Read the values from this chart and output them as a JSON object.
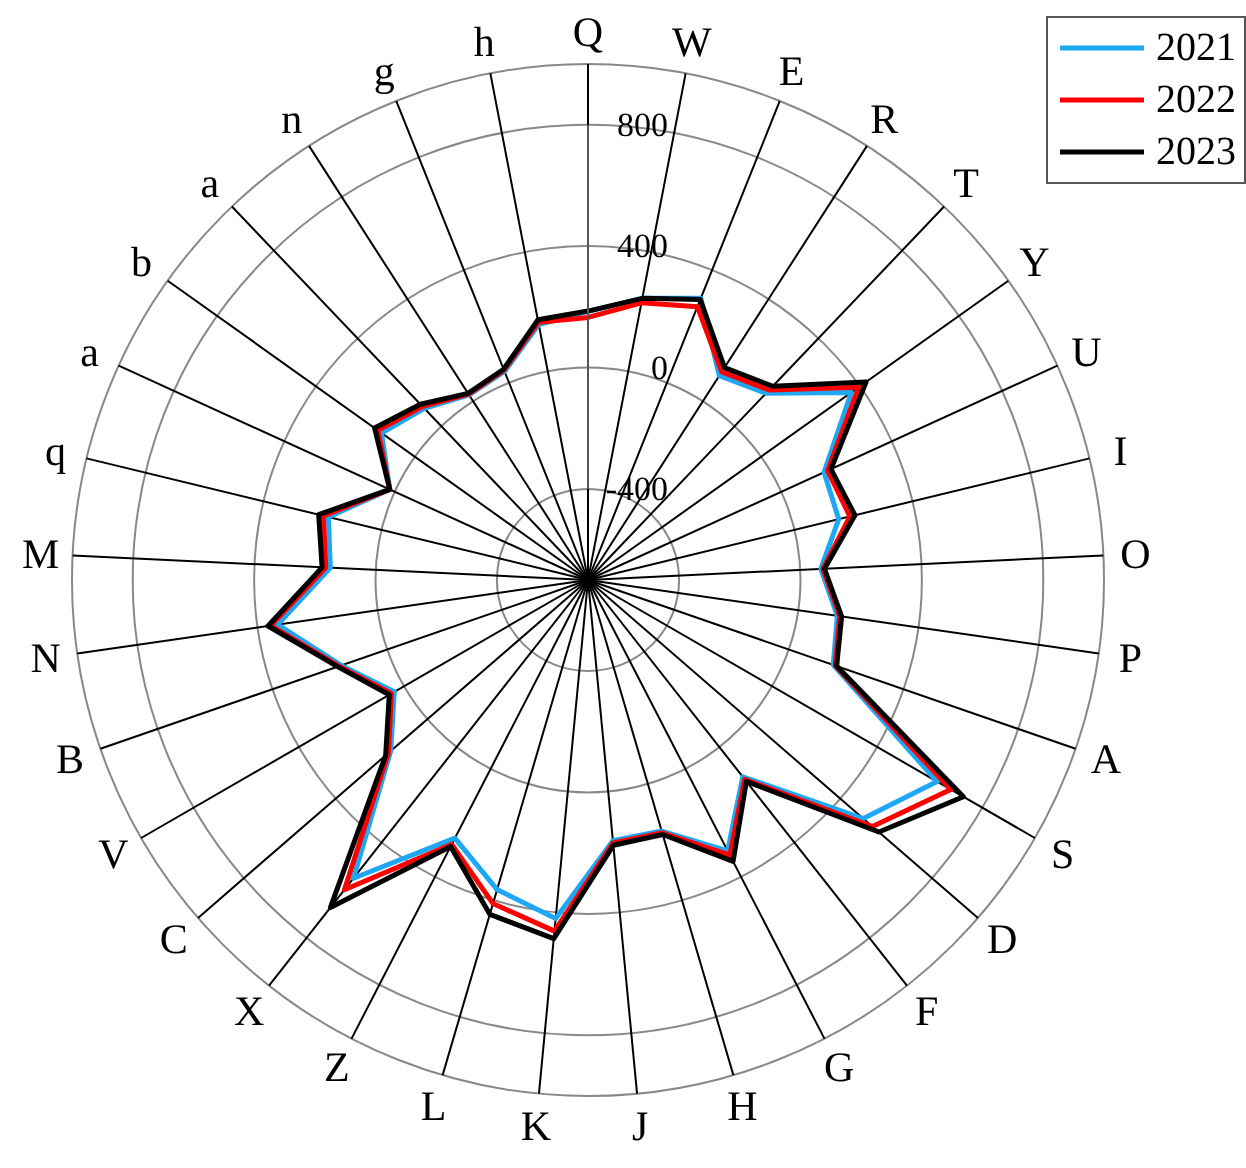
{
  "chart_data": {
    "type": "radar",
    "categories": [
      "Q",
      "W",
      "E",
      "R",
      "T",
      "Y",
      "U",
      "I",
      "O",
      "P",
      "A",
      "S",
      "D",
      "F",
      "G",
      "H",
      "J",
      "K",
      "L",
      "Z",
      "X",
      "C",
      "V",
      "B",
      "N",
      "M",
      "q",
      "a",
      "b",
      "a",
      "n",
      "g",
      "h"
    ],
    "series": [
      {
        "name": "2021",
        "color": "#1ea7f2",
        "values": [
          185,
          245,
          300,
          100,
          150,
          365,
          155,
          150,
          68,
          130,
          155,
          628,
          500,
          125,
          304,
          162,
          163,
          420,
          363,
          257,
          550,
          160,
          37,
          160,
          333,
          150,
          180,
          18,
          135,
          81,
          25,
          40,
          157
        ]
      },
      {
        "name": "2022",
        "color": "#ff0000",
        "values": [
          165,
          230,
          270,
          115,
          165,
          395,
          168,
          188,
          75,
          138,
          162,
          680,
          540,
          135,
          320,
          168,
          170,
          462,
          411,
          280,
          598,
          170,
          48,
          168,
          356,
          165,
          197,
          18,
          150,
          90,
          28,
          45,
          165
        ]
      },
      {
        "name": "2023",
        "color": "#000000",
        "values": [
          186,
          245,
          295,
          132,
          182,
          425,
          180,
          205,
          80,
          144,
          167,
          728,
          568,
          144,
          343,
          174,
          178,
          487,
          448,
          288,
          673,
          182,
          56,
          173,
          365,
          177,
          213,
          18,
          163,
          100,
          31,
          48,
          173
        ]
      }
    ],
    "ylim": [
      -700,
      1000
    ],
    "yticks": [
      -400,
      0,
      400,
      800
    ],
    "grid": true,
    "legend": "top right",
    "marker": "none",
    "line_style": "solid"
  }
}
